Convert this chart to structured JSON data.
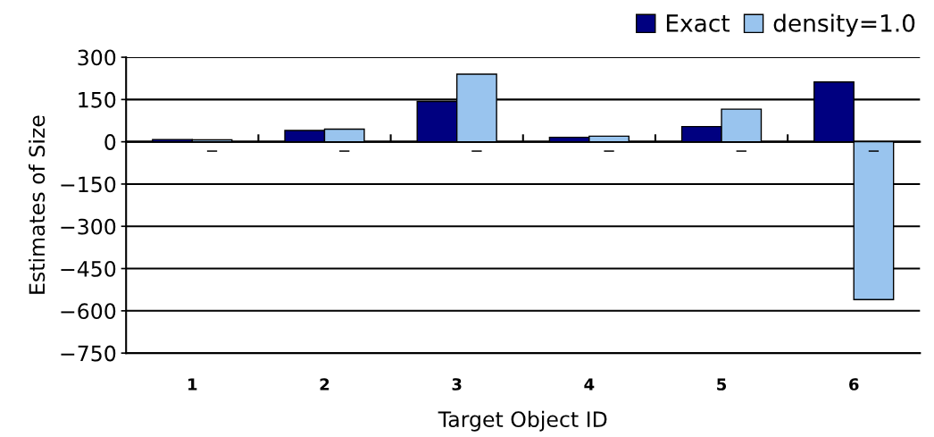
{
  "chart_data": {
    "type": "bar",
    "xlabel": "Target Object ID",
    "ylabel": "Estimates of Size",
    "categories": [
      "1",
      "2",
      "3",
      "4",
      "5",
      "6"
    ],
    "series": [
      {
        "name": "Exact",
        "color": "#000080",
        "values": [
          8,
          40,
          143,
          16,
          54,
          212
        ]
      },
      {
        "name": "density=1.0",
        "color": "#99c4ee",
        "values": [
          7,
          45,
          240,
          20,
          116,
          -560
        ],
        "value_labels": [
          "−",
          "−",
          "−",
          "−",
          "−",
          "−"
        ]
      }
    ],
    "ylim": [
      -750,
      300
    ],
    "yticks": [
      -750,
      -600,
      -450,
      -300,
      -150,
      0,
      150,
      300
    ],
    "grid": "y",
    "legend": "top right"
  }
}
